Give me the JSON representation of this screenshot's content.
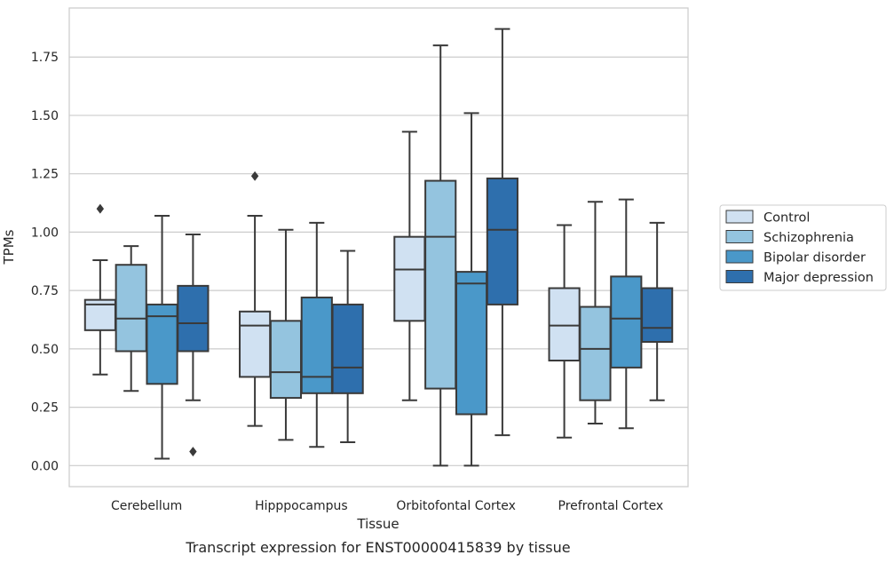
{
  "chart_data": {
    "type": "box",
    "xlabel": "Tissue",
    "ylabel": "TPMs",
    "caption": "Transcript expression for ENST00000415839 by tissue",
    "ylim": [
      -0.09,
      1.96
    ],
    "yticks": [
      "0.00",
      "0.25",
      "0.50",
      "0.75",
      "1.00",
      "1.25",
      "1.50",
      "1.75"
    ],
    "grid": "horizontal",
    "legend_position": "right",
    "categories": [
      "Cerebellum",
      "Hipppocampus",
      "Orbitofontal Cortex",
      "Prefrontal Cortex"
    ],
    "series": [
      {
        "name": "Control",
        "color": "#d0e1f2",
        "boxes": [
          {
            "min": 0.39,
            "q1": 0.58,
            "median": 0.69,
            "q3": 0.71,
            "max": 0.88,
            "outliers": [
              1.1
            ]
          },
          {
            "min": 0.17,
            "q1": 0.38,
            "median": 0.6,
            "q3": 0.66,
            "max": 1.07,
            "outliers": [
              1.24
            ]
          },
          {
            "min": 0.28,
            "q1": 0.62,
            "median": 0.84,
            "q3": 0.98,
            "max": 1.43,
            "outliers": []
          },
          {
            "min": 0.12,
            "q1": 0.45,
            "median": 0.6,
            "q3": 0.76,
            "max": 1.03,
            "outliers": []
          }
        ]
      },
      {
        "name": "Schizophrenia",
        "color": "#94c4df",
        "boxes": [
          {
            "min": 0.32,
            "q1": 0.49,
            "median": 0.63,
            "q3": 0.86,
            "max": 0.94,
            "outliers": []
          },
          {
            "min": 0.11,
            "q1": 0.29,
            "median": 0.4,
            "q3": 0.62,
            "max": 1.01,
            "outliers": []
          },
          {
            "min": 0.0,
            "q1": 0.33,
            "median": 0.98,
            "q3": 1.22,
            "max": 1.8,
            "outliers": []
          },
          {
            "min": 0.18,
            "q1": 0.28,
            "median": 0.5,
            "q3": 0.68,
            "max": 1.13,
            "outliers": []
          }
        ]
      },
      {
        "name": "Bipolar disorder",
        "color": "#4a98c9",
        "boxes": [
          {
            "min": 0.03,
            "q1": 0.35,
            "median": 0.64,
            "q3": 0.69,
            "max": 1.07,
            "outliers": []
          },
          {
            "min": 0.08,
            "q1": 0.31,
            "median": 0.38,
            "q3": 0.72,
            "max": 1.04,
            "outliers": []
          },
          {
            "min": 0.0,
            "q1": 0.22,
            "median": 0.78,
            "q3": 0.83,
            "max": 1.51,
            "outliers": []
          },
          {
            "min": 0.16,
            "q1": 0.42,
            "median": 0.63,
            "q3": 0.81,
            "max": 1.14,
            "outliers": []
          }
        ]
      },
      {
        "name": "Major depression",
        "color": "#2e6fad",
        "boxes": [
          {
            "min": 0.28,
            "q1": 0.49,
            "median": 0.61,
            "q3": 0.77,
            "max": 0.99,
            "outliers": [
              0.06
            ]
          },
          {
            "min": 0.1,
            "q1": 0.31,
            "median": 0.42,
            "q3": 0.69,
            "max": 0.92,
            "outliers": []
          },
          {
            "min": 0.13,
            "q1": 0.69,
            "median": 1.01,
            "q3": 1.23,
            "max": 1.87,
            "outliers": []
          },
          {
            "min": 0.28,
            "q1": 0.53,
            "median": 0.59,
            "q3": 0.76,
            "max": 1.04,
            "outliers": []
          }
        ]
      }
    ]
  }
}
